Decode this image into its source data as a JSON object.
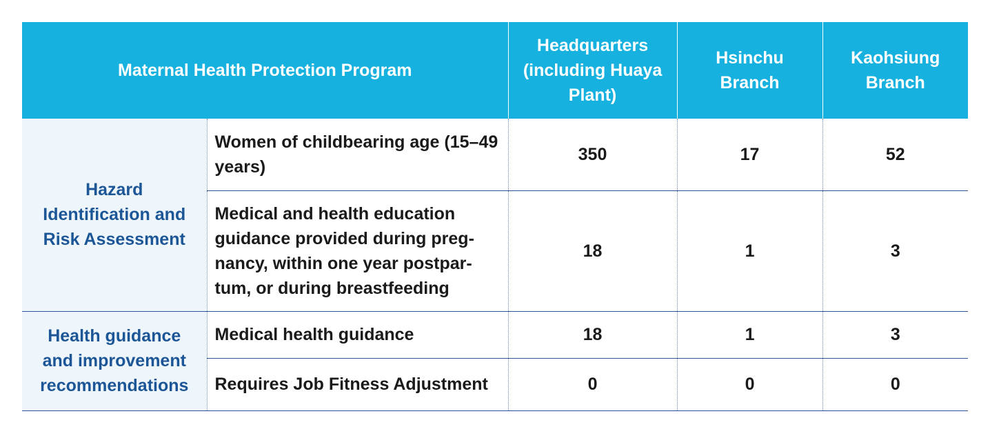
{
  "table": {
    "header": {
      "program": "Maternal Health Protection Program",
      "headquarters": "Headquarters (including Huaya Plant)",
      "hsinchu": "Hsinchu Branch",
      "kaohsiung": "Kaohsiung Branch"
    },
    "groups": [
      {
        "category": "Hazard Identification and Risk Assessment",
        "rows": [
          {
            "item": "Women of childbearing age (15–49 years)",
            "hq": "350",
            "hsinchu": "17",
            "kaohsiung": "52"
          },
          {
            "item": "Medical and health education guidance provided during preg-nancy, within one year postpar-tum, or during breastfeeding",
            "hq": "18",
            "hsinchu": "1",
            "kaohsiung": "3"
          }
        ]
      },
      {
        "category": "Health guidance and improvement recommendations",
        "rows": [
          {
            "item": "Medical health guidance",
            "hq": "18",
            "hsinchu": "1",
            "kaohsiung": "3"
          },
          {
            "item": "Requires Job Fitness Adjustment",
            "hq": "0",
            "hsinchu": "0",
            "kaohsiung": "0"
          }
        ]
      }
    ]
  },
  "colors": {
    "header_bg": "#17b1e0",
    "category_bg": "#eef6fc",
    "category_text": "#1c5696",
    "rule": "#2f5597"
  }
}
